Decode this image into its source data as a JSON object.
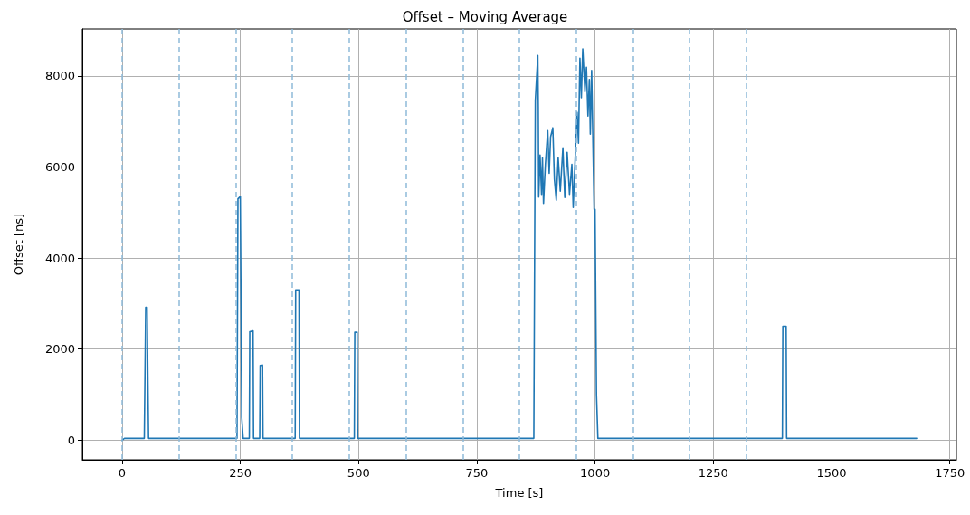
{
  "chart_data": {
    "type": "line",
    "title": "Offset – Moving Average",
    "xlabel": "Time [s]",
    "ylabel": "Offset [ns]",
    "xlim": [
      -84,
      1764
    ],
    "xticks": [
      0,
      250,
      500,
      750,
      1000,
      1250,
      1500,
      1750
    ],
    "ylim": [
      -430,
      9030
    ],
    "yticks": [
      0,
      2000,
      4000,
      6000,
      8000
    ],
    "grid": true,
    "marker": "none",
    "line_style": "solid",
    "series": [
      {
        "color": "#1f77b4",
        "x": [
          0,
          5,
          20,
          47,
          50,
          53,
          56,
          120,
          200,
          243,
          245,
          250,
          253,
          256,
          269,
          270,
          277,
          278,
          281,
          291,
          292,
          297,
          298,
          302,
          366,
          367,
          374,
          375,
          378,
          430,
          491,
          492,
          497,
          498,
          501,
          600,
          720,
          800,
          868,
          870.5,
          873.7,
          879,
          880,
          880.8,
          883.7,
          886.9,
          888.8,
          891,
          895,
          900,
          903,
          906,
          910.7,
          914,
          918,
          922,
          926.5,
          932,
          936,
          941,
          946,
          951,
          953.8,
          958,
          962,
          965,
          968,
          971,
          974,
          978.6,
          981.8,
          985,
          988,
          990,
          992.8,
          998,
          1000,
          1003,
          1006,
          1100,
          1200,
          1300,
          1396,
          1397,
          1404,
          1405,
          1408,
          1500,
          1600,
          1680
        ],
        "values": [
          0,
          40,
          40,
          40,
          2920,
          2920,
          40,
          40,
          40,
          40,
          5300,
          5350,
          500,
          40,
          40,
          2380,
          2400,
          40,
          40,
          40,
          1640,
          1650,
          40,
          40,
          40,
          3300,
          3300,
          40,
          40,
          40,
          40,
          2370,
          2370,
          40,
          40,
          40,
          40,
          40,
          40,
          40,
          7460,
          8450,
          7320,
          5340,
          6260,
          5400,
          6200,
          5200,
          6060,
          6800,
          5860,
          6660,
          6860,
          5730,
          5270,
          6200,
          5470,
          6420,
          5330,
          6320,
          5400,
          6060,
          5110,
          6200,
          7200,
          6520,
          8390,
          7520,
          8590,
          7650,
          8190,
          7120,
          7920,
          6720,
          8120,
          5070,
          5070,
          1000,
          40,
          40,
          40,
          40,
          40,
          2500,
          2500,
          40,
          40,
          40,
          40,
          40
        ]
      }
    ],
    "ref_lines": [
      {
        "axis": "x",
        "value": 0,
        "color": "#8fbbd9",
        "line_style": "dashed"
      },
      {
        "axis": "x",
        "value": 120,
        "color": "#8fbbd9",
        "line_style": "dashed"
      },
      {
        "axis": "x",
        "value": 240,
        "color": "#8fbbd9",
        "line_style": "dashed"
      },
      {
        "axis": "x",
        "value": 360,
        "color": "#8fbbd9",
        "line_style": "dashed"
      },
      {
        "axis": "x",
        "value": 480,
        "color": "#8fbbd9",
        "line_style": "dashed"
      },
      {
        "axis": "x",
        "value": 600,
        "color": "#8fbbd9",
        "line_style": "dashed"
      },
      {
        "axis": "x",
        "value": 720,
        "color": "#8fbbd9",
        "line_style": "dashed"
      },
      {
        "axis": "x",
        "value": 840,
        "color": "#8fbbd9",
        "line_style": "dashed"
      },
      {
        "axis": "x",
        "value": 960,
        "color": "#8fbbd9",
        "line_style": "dashed"
      },
      {
        "axis": "x",
        "value": 1080,
        "color": "#8fbbd9",
        "line_style": "dashed"
      },
      {
        "axis": "x",
        "value": 1200,
        "color": "#8fbbd9",
        "line_style": "dashed"
      },
      {
        "axis": "x",
        "value": 1320,
        "color": "#8fbbd9",
        "line_style": "dashed"
      }
    ]
  }
}
